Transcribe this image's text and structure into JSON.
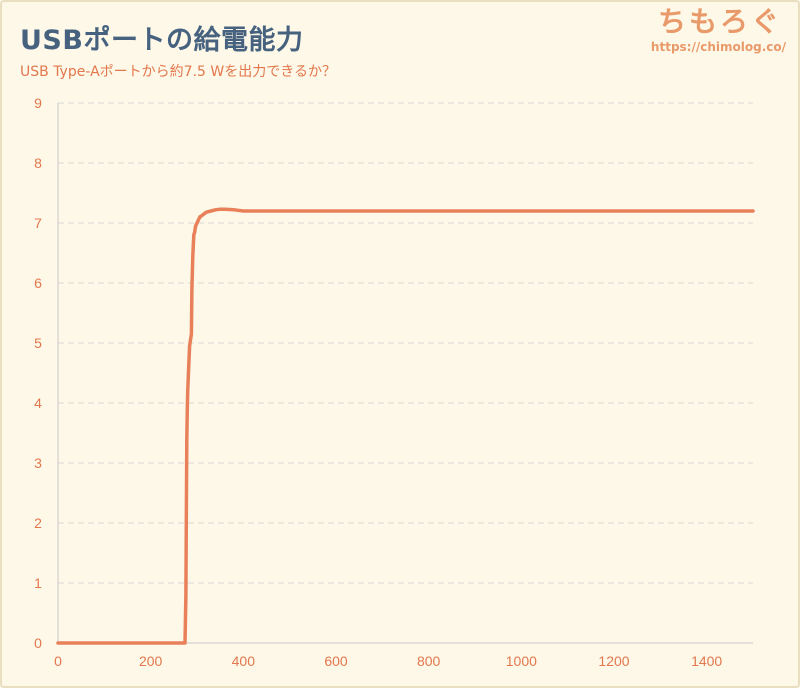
{
  "header": {
    "title": "USBポートの給電能力",
    "subtitle": "USB Type-Aポートから約7.5 Wを出力できるか？",
    "logo": "ちもろぐ",
    "url": "https://chimolog.co/"
  },
  "colors": {
    "background": "#fdf8e8",
    "title": "#46627f",
    "accent": "#e3774d",
    "line": "#e8805a",
    "grid": "#d9d9d9",
    "logo": "#e99a6a"
  },
  "chart_data": {
    "type": "line",
    "title": "USBポートの給電能力",
    "subtitle": "USB Type-Aポートから約7.5 Wを出力できるか？",
    "xlabel": "",
    "ylabel": "",
    "xlim": [
      0,
      1500
    ],
    "ylim": [
      0,
      9
    ],
    "x_ticks": [
      0,
      200,
      400,
      600,
      800,
      1000,
      1200,
      1400
    ],
    "y_ticks": [
      0,
      1,
      2,
      3,
      4,
      5,
      6,
      7,
      8,
      9
    ],
    "grid": "horizontal dashed",
    "legend": "none",
    "series": [
      {
        "x": [
          0,
          274,
          276,
          277,
          278,
          279,
          280,
          282,
          284,
          286,
          288,
          289,
          290,
          291,
          293,
          295,
          297,
          300,
          303,
          306,
          310,
          315,
          320,
          330,
          340,
          350,
          360,
          380,
          400,
          450,
          500,
          600,
          800,
          1000,
          1200,
          1400,
          1500
        ],
        "y": [
          0,
          0,
          0.8,
          2.0,
          3.4,
          3.9,
          4.2,
          4.6,
          4.95,
          5.05,
          5.15,
          5.9,
          6.2,
          6.45,
          6.8,
          6.85,
          6.95,
          7.0,
          7.05,
          7.1,
          7.12,
          7.15,
          7.18,
          7.2,
          7.22,
          7.23,
          7.23,
          7.22,
          7.2,
          7.2,
          7.2,
          7.2,
          7.2,
          7.2,
          7.2,
          7.2,
          7.2
        ]
      }
    ]
  }
}
